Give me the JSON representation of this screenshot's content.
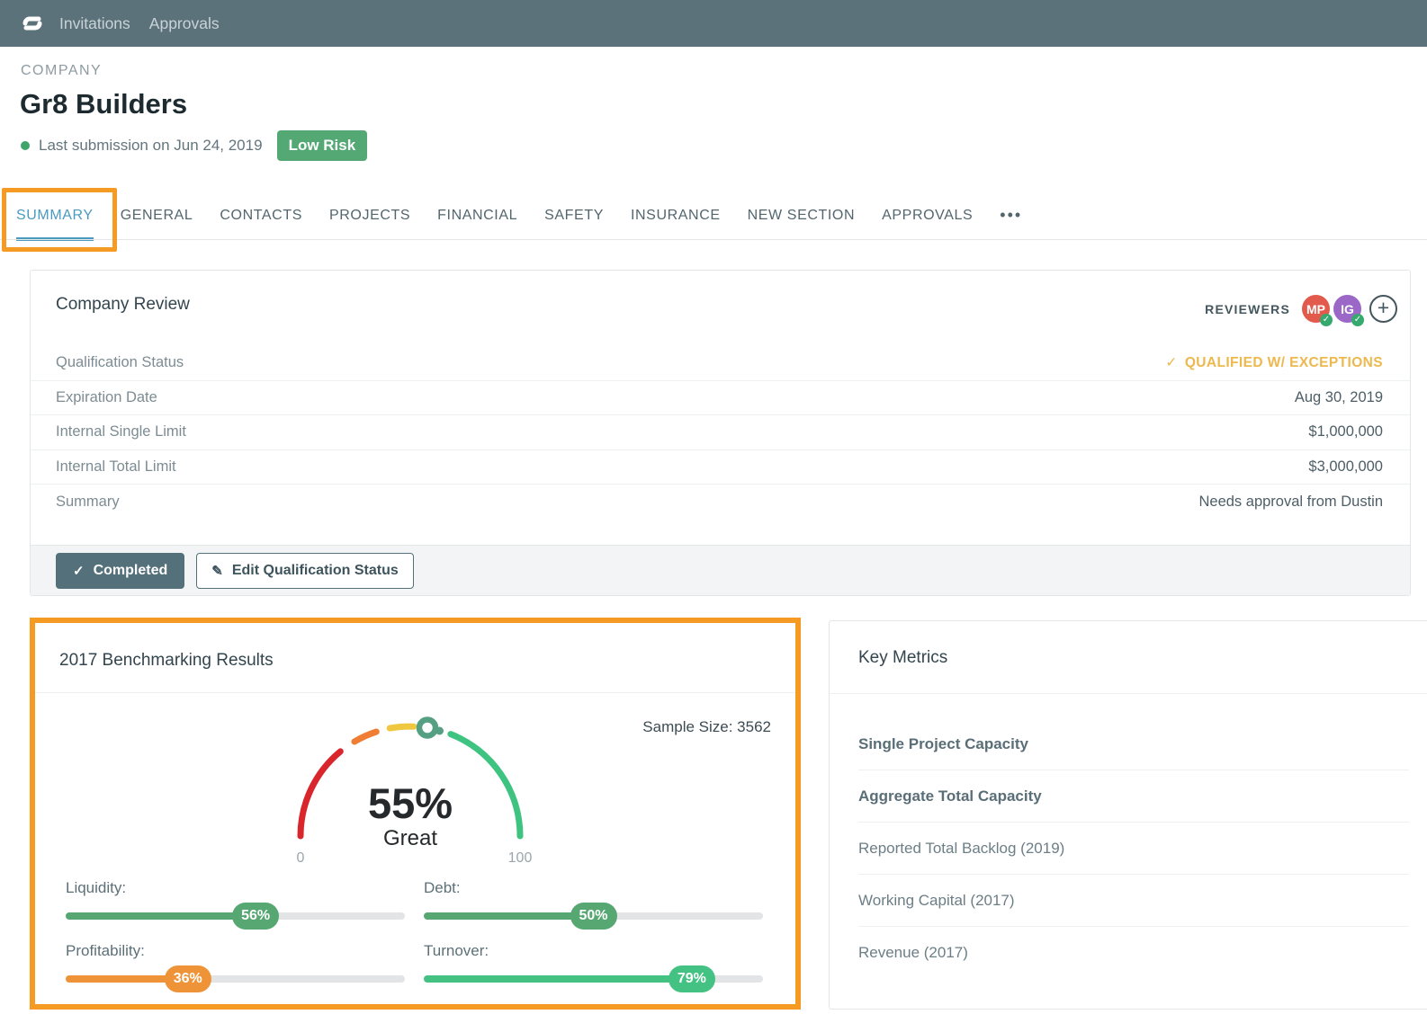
{
  "nav": {
    "items": [
      "Invitations",
      "Approvals"
    ]
  },
  "header": {
    "eyebrow": "COMPANY",
    "company_name": "Gr8 Builders",
    "submission_status": "Last submission on Jun 24, 2019",
    "risk_badge": "Low Risk"
  },
  "tabs": {
    "items": [
      "SUMMARY",
      "GENERAL",
      "CONTACTS",
      "PROJECTS",
      "FINANCIAL",
      "SAFETY",
      "INSURANCE",
      "NEW SECTION",
      "APPROVALS"
    ],
    "active": "SUMMARY",
    "overflow_icon": "•••"
  },
  "company_review": {
    "title": "Company Review",
    "reviewers_label": "REVIEWERS",
    "reviewers": [
      {
        "initials": "MP",
        "color": "#E25A4C"
      },
      {
        "initials": "IG",
        "color": "#9B68C8"
      }
    ],
    "check_glyph": "✓",
    "plus_glyph": "+",
    "rows": [
      {
        "label": "Qualification Status",
        "value": "QUALIFIED W/ EXCEPTIONS"
      },
      {
        "label": "Expiration Date",
        "value": "Aug 30, 2019"
      },
      {
        "label": "Internal Single Limit",
        "value": "$1,000,000"
      },
      {
        "label": "Internal Total Limit",
        "value": "$3,000,000"
      },
      {
        "label": "Summary",
        "value": "Needs approval from Dustin"
      }
    ],
    "completed_button": "Completed",
    "edit_button": "Edit Qualification Status",
    "completed_glyph": "✓",
    "edit_glyph": "✎"
  },
  "benchmarking": {
    "title": "2017 Benchmarking Results",
    "sample_size": "Sample Size: 3562"
  },
  "key_metrics": {
    "title": "Key Metrics",
    "items": [
      {
        "label": "Single Project Capacity",
        "emphasized": true
      },
      {
        "label": "Aggregate Total Capacity",
        "emphasized": true
      },
      {
        "label": "Reported Total Backlog (2019)",
        "emphasized": false
      },
      {
        "label": "Working Capital (2017)",
        "emphasized": false
      },
      {
        "label": "Revenue (2017)",
        "emphasized": false
      }
    ]
  },
  "chart_data": [
    {
      "type": "gauge",
      "title": "2017 Benchmarking Results",
      "value": 55,
      "display_value": "55%",
      "rating_label": "Great",
      "min": 0,
      "max": 100,
      "min_label": "0",
      "max_label": "100",
      "sample_size": 3562,
      "segments": [
        {
          "from": 0,
          "to": 28,
          "color": "#D8262C",
          "style": "solid"
        },
        {
          "from": 33,
          "to": 40,
          "color": "#EF7D33",
          "style": "dash"
        },
        {
          "from": 44,
          "to": 51,
          "color": "#EFC83F",
          "style": "dash"
        },
        {
          "from": 62,
          "to": 100,
          "color": "#3FC380",
          "style": "solid"
        }
      ],
      "marker_color": "#55A082"
    },
    {
      "type": "bar",
      "categories": [
        "Liquidity",
        "Debt",
        "Profitability",
        "Turnover"
      ],
      "display_labels": [
        "Liquidity:",
        "Debt:",
        "Profitability:",
        "Turnover:"
      ],
      "values": [
        56,
        50,
        36,
        79
      ],
      "colors": [
        "#57A773",
        "#57A773",
        "#EE9338",
        "#44C283"
      ],
      "unit": "%",
      "xlim": [
        0,
        100
      ]
    }
  ],
  "annotations": {
    "color": "#F59B23",
    "boxes": [
      "summary-tab",
      "benchmarking-card"
    ]
  },
  "colors": {
    "nav_bg": "#5B727B",
    "active_tab": "#4A9BBF",
    "risk_badge_bg": "#53A873",
    "status_amber": "#EDB84D",
    "button_bg": "#54707A",
    "check_badge": "#36A96F"
  }
}
